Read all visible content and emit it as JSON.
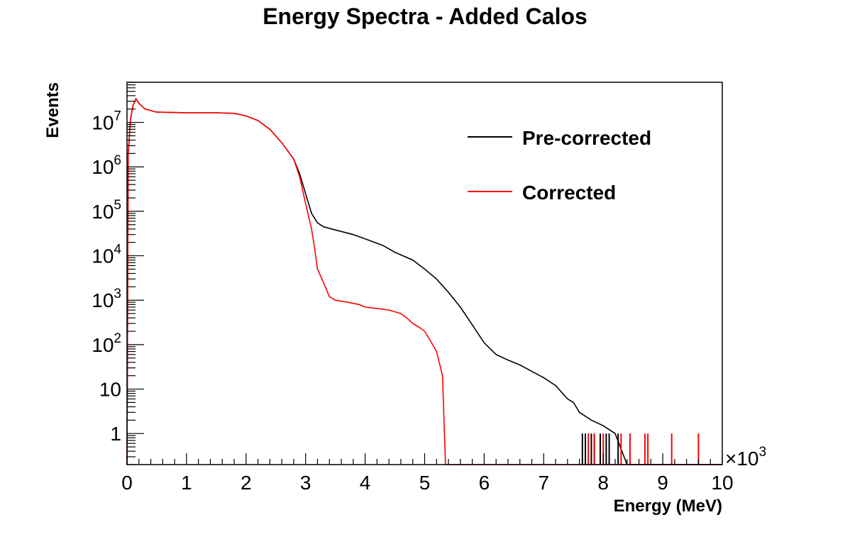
{
  "chart_data": {
    "type": "line",
    "title": "Energy Spectra - Added Calos",
    "xlabel": "Energy (MeV)",
    "ylabel": "Events",
    "x_multiplier_label": "×10",
    "x_multiplier_exp": "3",
    "xlim": [
      0,
      10
    ],
    "ylim": [
      0.2,
      80000000
    ],
    "log_y": true,
    "grid": false,
    "legend_position": "top-right",
    "x_ticks": [
      "0",
      "1",
      "2",
      "3",
      "4",
      "5",
      "6",
      "7",
      "8",
      "9",
      "10"
    ],
    "y_ticks": [
      {
        "value": 1,
        "base": "1",
        "exp": ""
      },
      {
        "value": 10,
        "base": "10",
        "exp": ""
      },
      {
        "value": 100,
        "base": "10",
        "exp": "2"
      },
      {
        "value": 1000,
        "base": "10",
        "exp": "3"
      },
      {
        "value": 10000,
        "base": "10",
        "exp": "4"
      },
      {
        "value": 100000,
        "base": "10",
        "exp": "5"
      },
      {
        "value": 1000000,
        "base": "10",
        "exp": "6"
      },
      {
        "value": 10000000,
        "base": "10",
        "exp": "7"
      }
    ],
    "series": [
      {
        "name": "Pre-corrected",
        "color": "#000000",
        "points": [
          [
            0.0,
            0.2
          ],
          [
            0.02,
            2000000
          ],
          [
            0.06,
            12000000
          ],
          [
            0.1,
            24000000
          ],
          [
            0.15,
            34000000
          ],
          [
            0.2,
            27000000
          ],
          [
            0.3,
            20000000
          ],
          [
            0.5,
            17000000
          ],
          [
            1.0,
            16500000
          ],
          [
            1.5,
            16500000
          ],
          [
            1.8,
            16000000
          ],
          [
            2.0,
            14000000
          ],
          [
            2.2,
            11000000
          ],
          [
            2.4,
            7000000
          ],
          [
            2.6,
            3500000
          ],
          [
            2.8,
            1500000
          ],
          [
            2.9,
            700000
          ],
          [
            3.0,
            250000
          ],
          [
            3.1,
            90000
          ],
          [
            3.2,
            55000
          ],
          [
            3.3,
            45000
          ],
          [
            3.5,
            38000
          ],
          [
            3.8,
            30000
          ],
          [
            4.0,
            24000
          ],
          [
            4.3,
            17000
          ],
          [
            4.5,
            12000
          ],
          [
            4.8,
            8000
          ],
          [
            5.0,
            5000
          ],
          [
            5.2,
            3000
          ],
          [
            5.4,
            1500
          ],
          [
            5.6,
            700
          ],
          [
            5.8,
            280
          ],
          [
            6.0,
            110
          ],
          [
            6.2,
            60
          ],
          [
            6.4,
            45
          ],
          [
            6.6,
            35
          ],
          [
            6.8,
            25
          ],
          [
            7.0,
            18
          ],
          [
            7.2,
            12
          ],
          [
            7.4,
            6
          ],
          [
            7.5,
            5
          ],
          [
            7.6,
            3
          ],
          [
            7.8,
            2
          ],
          [
            8.0,
            1.5
          ],
          [
            8.2,
            1
          ],
          [
            8.4,
            0.2
          ],
          [
            10.0,
            0.2
          ]
        ],
        "spikes": [
          7.65,
          7.7,
          7.8,
          7.85,
          7.95,
          8.05,
          8.1,
          8.25
        ]
      },
      {
        "name": "Corrected",
        "color": "#ff0000",
        "points": [
          [
            0.0,
            0.2
          ],
          [
            0.02,
            2000000
          ],
          [
            0.06,
            12000000
          ],
          [
            0.1,
            24000000
          ],
          [
            0.15,
            34000000
          ],
          [
            0.2,
            27000000
          ],
          [
            0.3,
            20000000
          ],
          [
            0.5,
            17000000
          ],
          [
            1.0,
            16500000
          ],
          [
            1.5,
            16500000
          ],
          [
            1.8,
            16000000
          ],
          [
            2.0,
            14000000
          ],
          [
            2.2,
            11000000
          ],
          [
            2.4,
            7000000
          ],
          [
            2.6,
            3500000
          ],
          [
            2.8,
            1500000
          ],
          [
            2.9,
            600000
          ],
          [
            3.0,
            150000
          ],
          [
            3.1,
            40000
          ],
          [
            3.15,
            15000
          ],
          [
            3.2,
            5000
          ],
          [
            3.3,
            2500
          ],
          [
            3.4,
            1200
          ],
          [
            3.5,
            1000
          ],
          [
            3.7,
            900
          ],
          [
            3.9,
            800
          ],
          [
            4.0,
            700
          ],
          [
            4.2,
            650
          ],
          [
            4.4,
            600
          ],
          [
            4.5,
            550
          ],
          [
            4.6,
            500
          ],
          [
            4.7,
            400
          ],
          [
            4.8,
            300
          ],
          [
            4.9,
            250
          ],
          [
            5.0,
            200
          ],
          [
            5.1,
            120
          ],
          [
            5.2,
            70
          ],
          [
            5.3,
            20
          ],
          [
            5.35,
            0.2
          ],
          [
            10.0,
            0.2
          ]
        ],
        "spikes": [
          7.75,
          7.85,
          8.0,
          8.3,
          8.45,
          8.7,
          8.75,
          9.15,
          9.6
        ]
      }
    ]
  }
}
